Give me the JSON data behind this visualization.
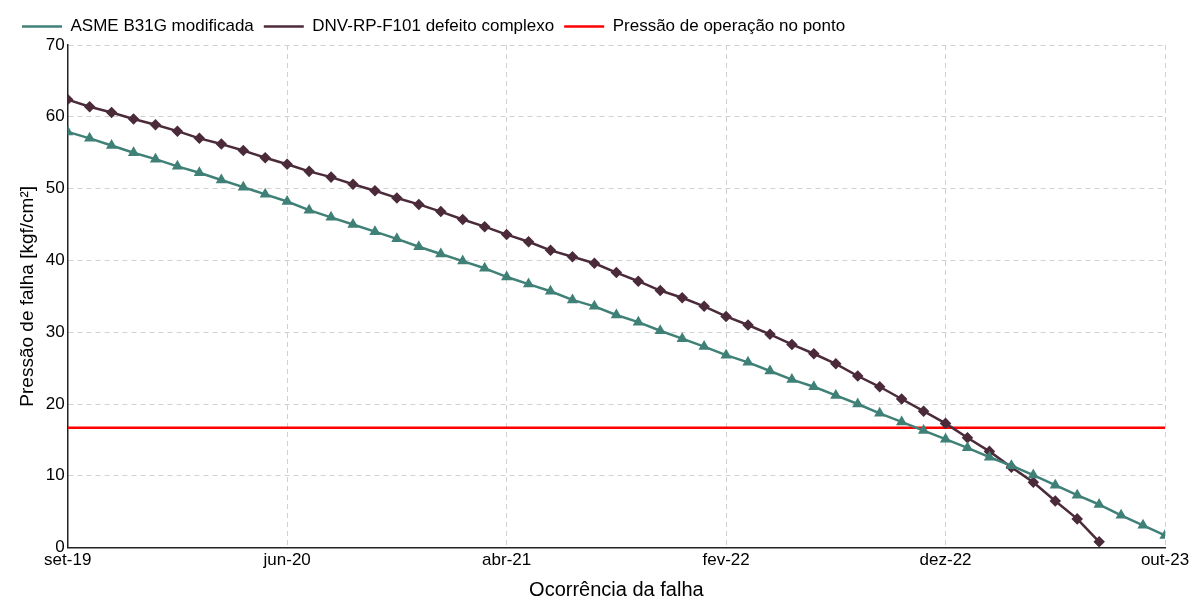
{
  "chart_data": {
    "type": "line",
    "xlabel": "Ocorrência da falha",
    "ylabel": "Pressão de falha [kgf/cm²]",
    "x": [
      "2019-09-01",
      "2019-10-01",
      "2019-10-31",
      "2019-11-30",
      "2019-12-30",
      "2020-01-29",
      "2020-02-28",
      "2020-03-29",
      "2020-04-28",
      "2020-05-28",
      "2020-06-27",
      "2020-07-27",
      "2020-08-26",
      "2020-09-25",
      "2020-10-25",
      "2020-11-24",
      "2020-12-24",
      "2021-01-23",
      "2021-02-22",
      "2021-03-24",
      "2021-04-23",
      "2021-05-23",
      "2021-06-22",
      "2021-07-22",
      "2021-08-21",
      "2021-09-20",
      "2021-10-20",
      "2021-11-19",
      "2021-12-19",
      "2022-01-18",
      "2022-02-17",
      "2022-03-19",
      "2022-04-18",
      "2022-05-18",
      "2022-06-17",
      "2022-07-17",
      "2022-08-16",
      "2022-09-15",
      "2022-10-15",
      "2022-11-14",
      "2022-12-14",
      "2023-01-13",
      "2023-02-12",
      "2023-03-14",
      "2023-04-13",
      "2023-05-13",
      "2023-06-12",
      "2023-07-12",
      "2023-08-11",
      "2023-09-10",
      "2023-10-10"
    ],
    "series": [
      {
        "name": "ASME B31G modificada",
        "color": "#3f8077",
        "marker": "triangle",
        "values": [
          57.9,
          57.0,
          56.0,
          55.0,
          54.1,
          53.1,
          52.2,
          51.2,
          50.2,
          49.2,
          48.2,
          47.0,
          46.0,
          45.0,
          44.0,
          43.0,
          41.9,
          40.9,
          39.9,
          38.9,
          37.7,
          36.7,
          35.7,
          34.5,
          33.6,
          32.4,
          31.4,
          30.2,
          29.1,
          28.0,
          26.8,
          25.8,
          24.6,
          23.4,
          22.4,
          21.2,
          20.0,
          18.7,
          17.5,
          16.3,
          15.1,
          13.9,
          12.6,
          11.4,
          10.1,
          8.7,
          7.3,
          6.0,
          4.5,
          3.1,
          1.7
        ]
      },
      {
        "name": "DNV-RP-F101 defeito complexo",
        "color": "#4b2a3a",
        "marker": "diamond",
        "values": [
          62.4,
          61.4,
          60.6,
          59.7,
          58.9,
          58.0,
          57.0,
          56.2,
          55.3,
          54.3,
          53.4,
          52.4,
          51.6,
          50.6,
          49.7,
          48.7,
          47.8,
          46.8,
          45.7,
          44.7,
          43.6,
          42.6,
          41.4,
          40.5,
          39.6,
          38.3,
          37.1,
          35.8,
          34.8,
          33.6,
          32.2,
          31.0,
          29.7,
          28.3,
          27.0,
          25.6,
          23.9,
          22.4,
          20.7,
          19.0,
          17.3,
          15.3,
          13.4,
          11.2,
          9.1,
          6.5,
          4.0,
          0.8,
          null,
          null,
          null
        ]
      },
      {
        "name": "Pressão de operação no ponto",
        "color": "#ff0000",
        "marker": "none",
        "x": [
          "2019-09-01",
          "2023-10-10"
        ],
        "values": [
          16.7,
          16.7
        ]
      }
    ],
    "xlim": [
      "2019-09-01",
      "2023-10-10"
    ],
    "xticks": [
      {
        "value": "2019-09-01",
        "label": "set-19"
      },
      {
        "value": "2020-06-27",
        "label": "jun-20"
      },
      {
        "value": "2021-04-23",
        "label": "abr-21"
      },
      {
        "value": "2022-02-17",
        "label": "fev-22"
      },
      {
        "value": "2022-12-14",
        "label": "dez-22"
      },
      {
        "value": "2023-10-10",
        "label": "out-23"
      }
    ],
    "ylim": [
      0,
      70
    ],
    "yticks": [
      0,
      10,
      20,
      30,
      40,
      50,
      60,
      70
    ],
    "grid": true,
    "legend": "top"
  }
}
